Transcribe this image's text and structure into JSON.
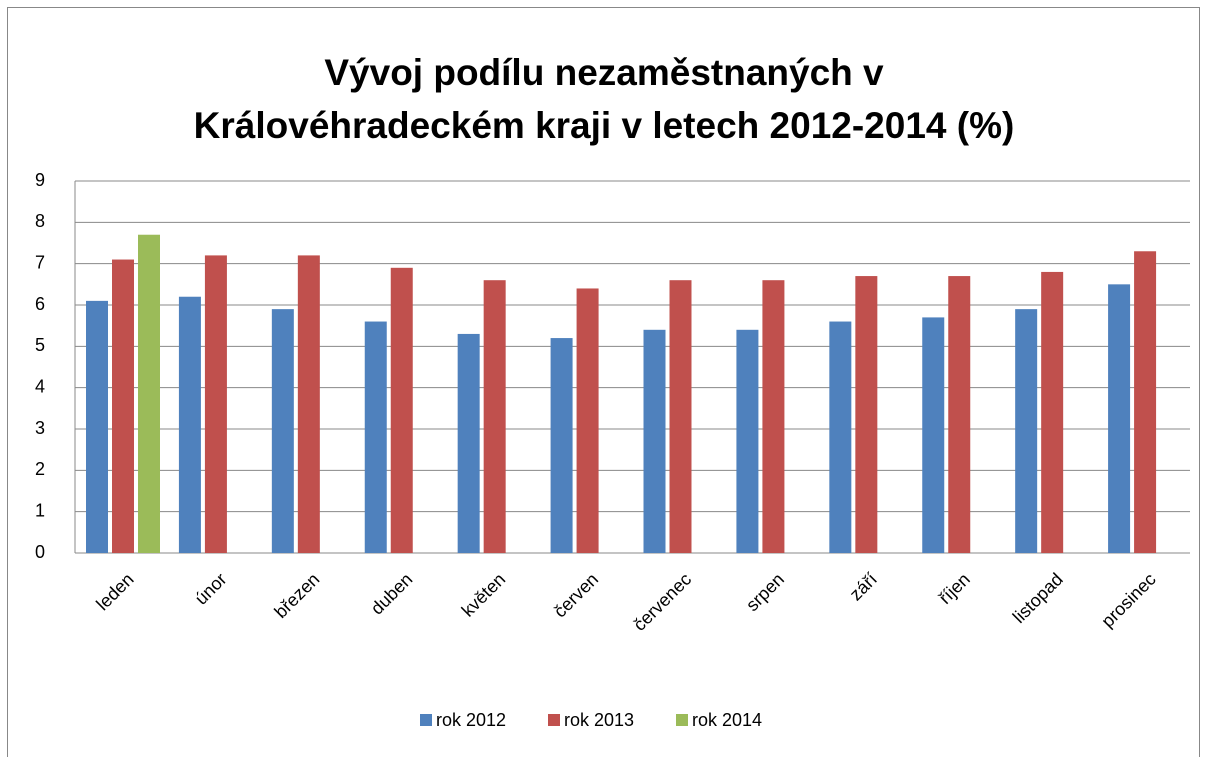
{
  "chart_data": {
    "type": "bar",
    "title": [
      "Vývoj podílu nezaměstnaných v",
      "Královéhradeckém kraji v letech 2012-2014 (%)"
    ],
    "categories": [
      "leden",
      "únor",
      "březen",
      "duben",
      "květen",
      "červen",
      "červenec",
      "srpen",
      "září",
      "říjen",
      "listopad",
      "prosinec"
    ],
    "series": [
      {
        "name": "rok 2012",
        "color": "#4f81bd",
        "values": [
          6.1,
          6.2,
          5.9,
          5.6,
          5.3,
          5.2,
          5.4,
          5.4,
          5.6,
          5.7,
          5.9,
          6.5
        ]
      },
      {
        "name": "rok 2013",
        "color": "#c0504d",
        "values": [
          7.1,
          7.2,
          7.2,
          6.9,
          6.6,
          6.4,
          6.6,
          6.6,
          6.7,
          6.7,
          6.8,
          7.3
        ]
      },
      {
        "name": "rok 2014",
        "color": "#9bbb59",
        "values": [
          7.7,
          null,
          null,
          null,
          null,
          null,
          null,
          null,
          null,
          null,
          null,
          null
        ]
      }
    ],
    "ylim": [
      0,
      9
    ],
    "yticks": [
      0,
      1,
      2,
      3,
      4,
      5,
      6,
      7,
      8,
      9
    ],
    "grid": true,
    "legend": "bottom"
  }
}
